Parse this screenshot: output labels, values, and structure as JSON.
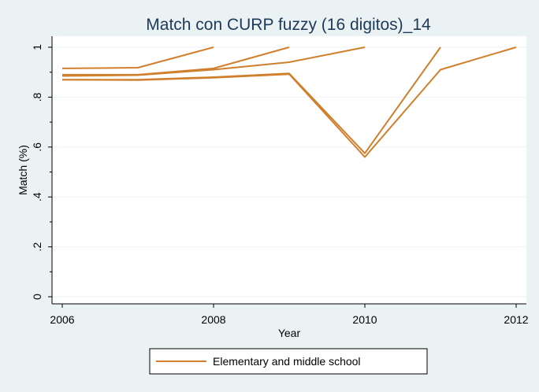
{
  "chart_data": {
    "type": "line",
    "title": "Match con CURP fuzzy (16 digitos)_14",
    "xlabel": "Year",
    "ylabel": "Match (%)",
    "xlim": [
      2006,
      2012
    ],
    "ylim": [
      0,
      1
    ],
    "x_ticks": [
      2006,
      2008,
      2010,
      2012
    ],
    "x_tick_labels": [
      "2006",
      "2008",
      "2010",
      "2012"
    ],
    "y_ticks": [
      0,
      0.2,
      0.4,
      0.6,
      0.8,
      1
    ],
    "y_tick_labels": [
      "0",
      ".2",
      ".4",
      ".6",
      ".8",
      "1"
    ],
    "grid": true,
    "legend_position": "bottom",
    "series_color": "#d07f2c",
    "series": [
      {
        "name": "Elementary and middle school",
        "x": [
          2006,
          2007,
          2008
        ],
        "values": [
          0.915,
          0.918,
          1.0
        ]
      },
      {
        "name": "Elementary and middle school",
        "x": [
          2006,
          2007,
          2008,
          2009
        ],
        "values": [
          0.89,
          0.89,
          0.915,
          1.0
        ]
      },
      {
        "name": "Elementary and middle school",
        "x": [
          2006,
          2007,
          2008,
          2009,
          2010
        ],
        "values": [
          0.885,
          0.888,
          0.91,
          0.94,
          1.0
        ]
      },
      {
        "name": "Elementary and middle school",
        "x": [
          2006,
          2007,
          2008,
          2009,
          2010,
          2011
        ],
        "values": [
          0.87,
          0.87,
          0.88,
          0.895,
          0.575,
          1.0
        ]
      },
      {
        "name": "Elementary and middle school",
        "x": [
          2006,
          2007,
          2008,
          2009,
          2010,
          2011,
          2012
        ],
        "values": [
          0.87,
          0.868,
          0.878,
          0.892,
          0.56,
          0.91,
          1.0
        ]
      }
    ],
    "legend": [
      {
        "label": "Elementary and middle school",
        "color": "#d07f2c"
      }
    ]
  }
}
